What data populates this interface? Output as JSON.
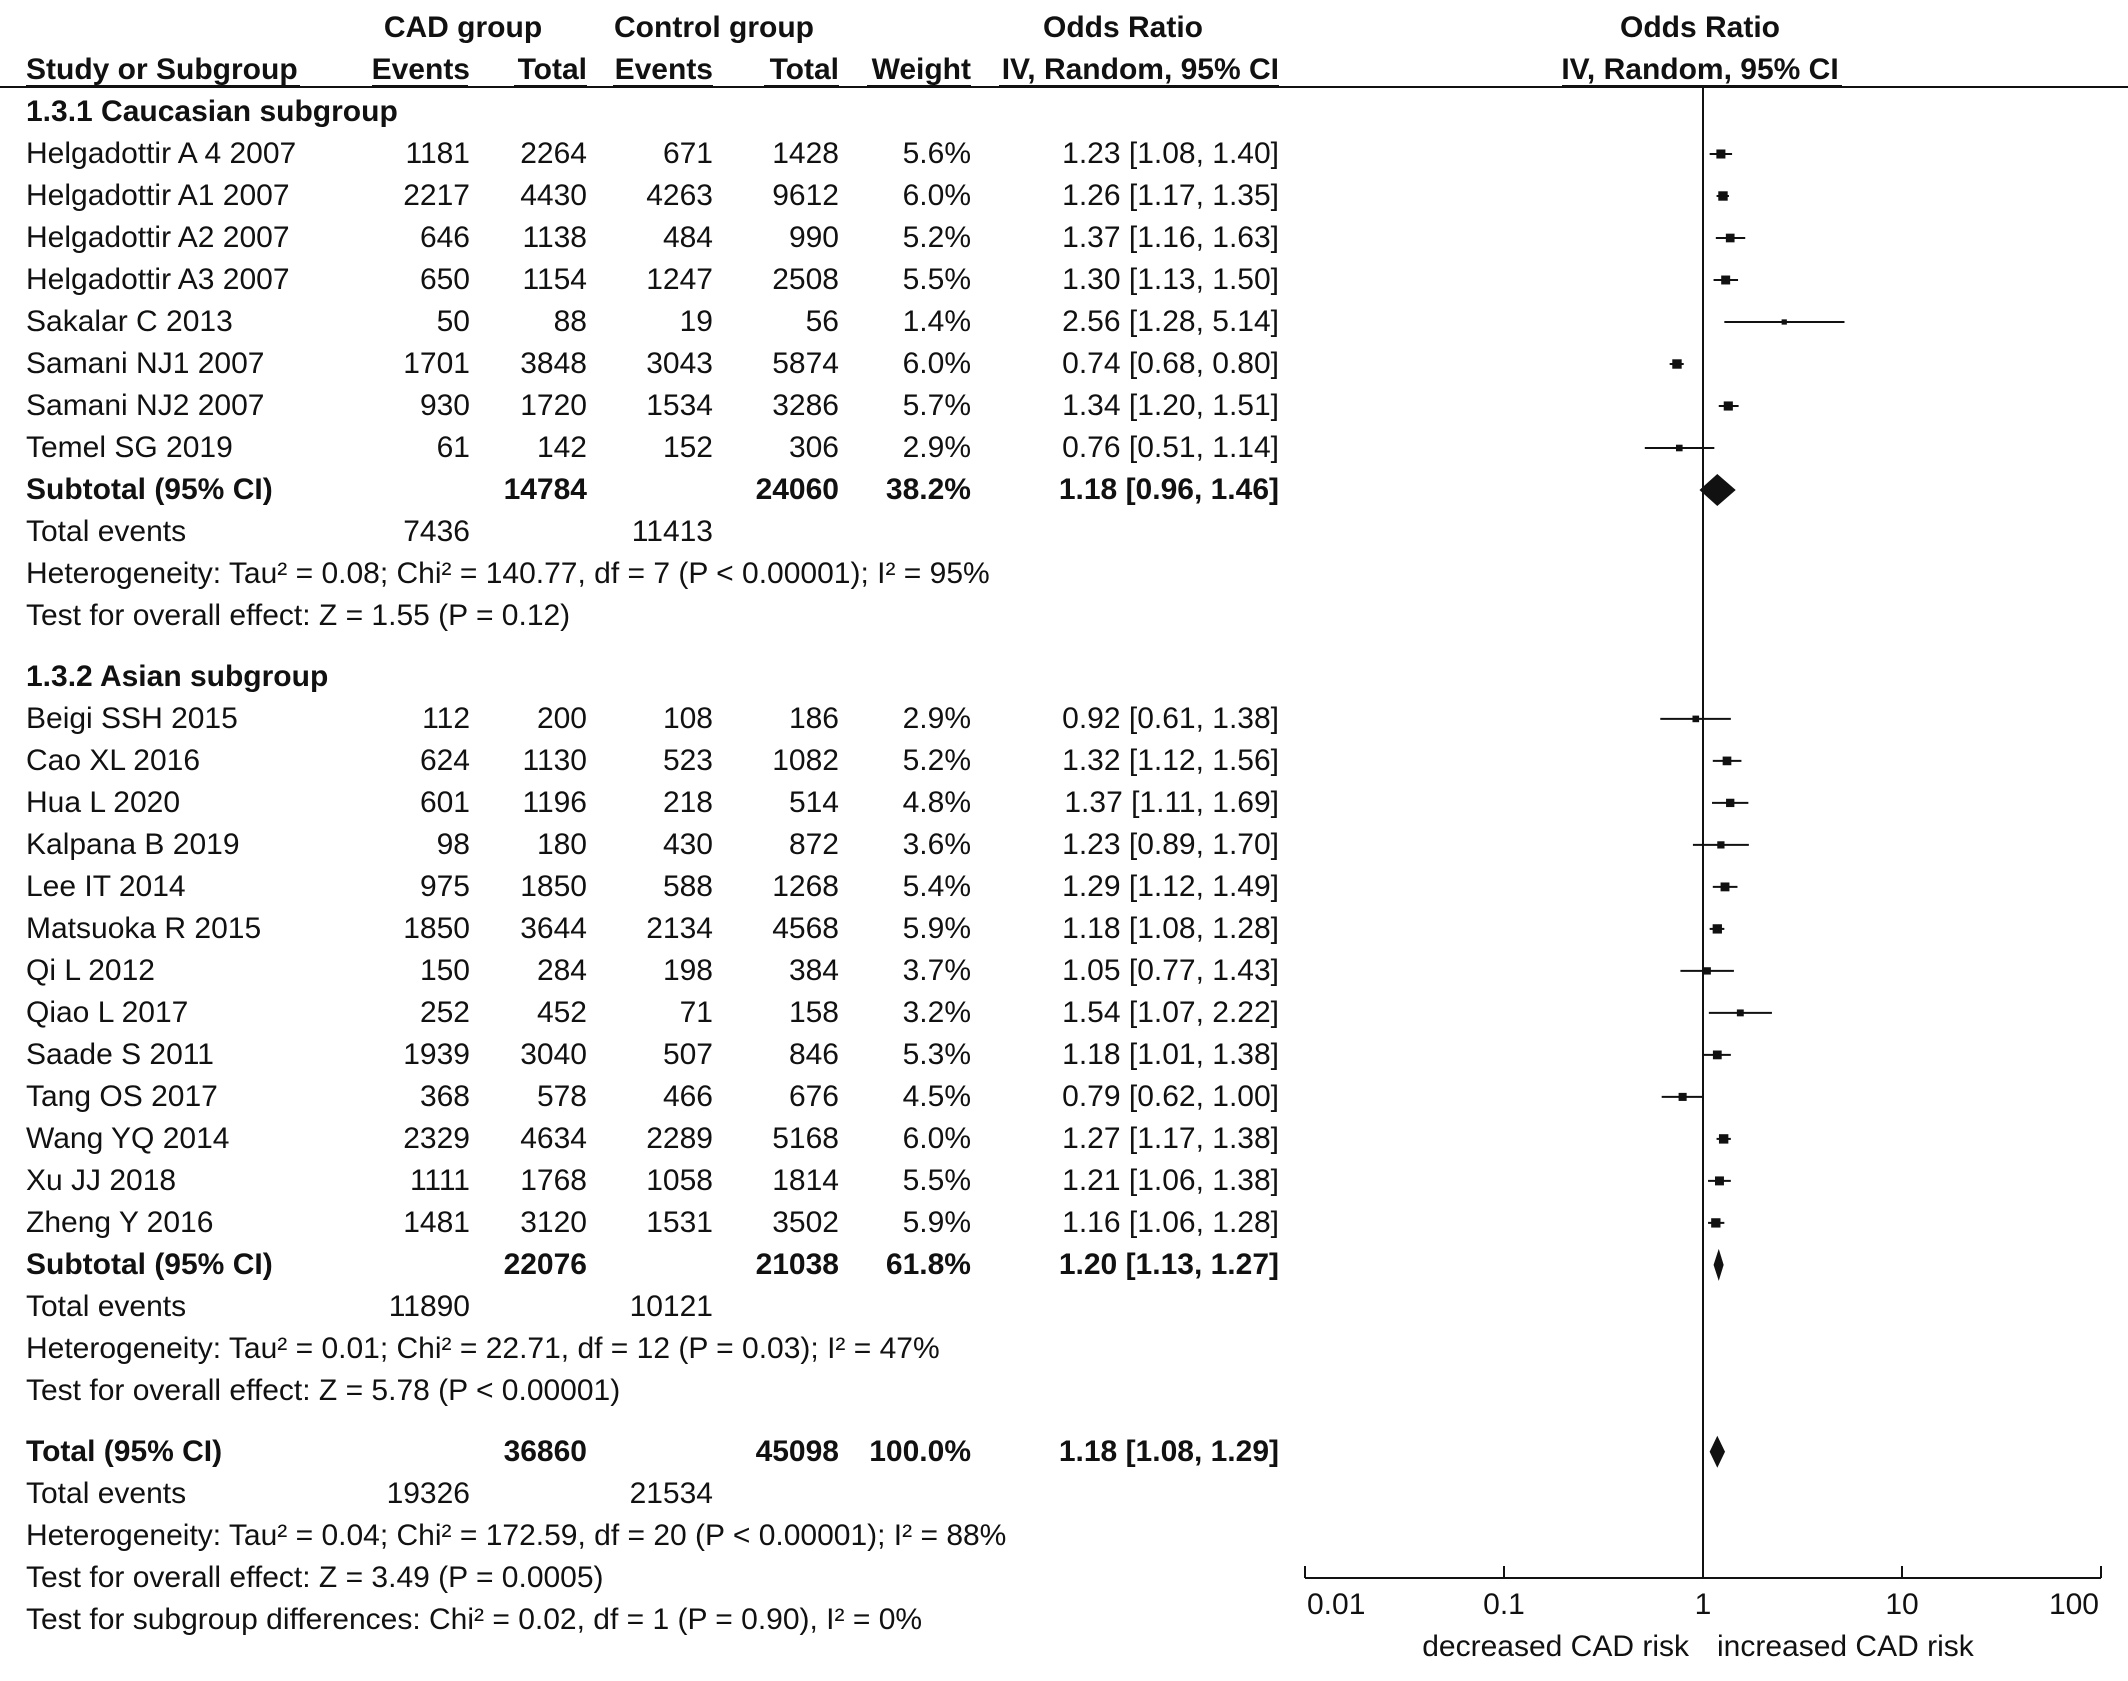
{
  "header": {
    "group1": "CAD group",
    "group2": "Control group",
    "or_title_left": "Odds Ratio",
    "or_title_right": "Odds Ratio",
    "col_study": "Study or Subgroup",
    "col_events1": "Events",
    "col_total1": "Total",
    "col_events2": "Events",
    "col_total2": "Total",
    "col_weight": "Weight",
    "col_method_left": "IV, Random, 95% CI",
    "col_method_right": "IV, Random, 95% CI"
  },
  "subgroups": [
    {
      "title": "1.3.1 Caucasian subgroup",
      "studies": [
        {
          "name": "Helgadottir A 4 2007",
          "e1": "1181",
          "t1": "2264",
          "e2": "671",
          "t2": "1428",
          "weight": "5.6%",
          "ci": "1.23 [1.08, 1.40]"
        },
        {
          "name": "Helgadottir A1 2007",
          "e1": "2217",
          "t1": "4430",
          "e2": "4263",
          "t2": "9612",
          "weight": "6.0%",
          "ci": "1.26 [1.17, 1.35]"
        },
        {
          "name": "Helgadottir A2 2007",
          "e1": "646",
          "t1": "1138",
          "e2": "484",
          "t2": "990",
          "weight": "5.2%",
          "ci": "1.37 [1.16, 1.63]"
        },
        {
          "name": "Helgadottir A3 2007",
          "e1": "650",
          "t1": "1154",
          "e2": "1247",
          "t2": "2508",
          "weight": "5.5%",
          "ci": "1.30 [1.13, 1.50]"
        },
        {
          "name": "Sakalar C 2013",
          "e1": "50",
          "t1": "88",
          "e2": "19",
          "t2": "56",
          "weight": "1.4%",
          "ci": "2.56 [1.28, 5.14]"
        },
        {
          "name": "Samani NJ1 2007",
          "e1": "1701",
          "t1": "3848",
          "e2": "3043",
          "t2": "5874",
          "weight": "6.0%",
          "ci": "0.74 [0.68, 0.80]"
        },
        {
          "name": "Samani NJ2 2007",
          "e1": "930",
          "t1": "1720",
          "e2": "1534",
          "t2": "3286",
          "weight": "5.7%",
          "ci": "1.34 [1.20, 1.51]"
        },
        {
          "name": "Temel SG 2019",
          "e1": "61",
          "t1": "142",
          "e2": "152",
          "t2": "306",
          "weight": "2.9%",
          "ci": "0.76 [0.51, 1.14]"
        }
      ],
      "subtotal": {
        "label": "Subtotal (95% CI)",
        "t1": "14784",
        "t2": "24060",
        "weight": "38.2%",
        "ci": "1.18 [0.96, 1.46]"
      },
      "total_events": {
        "label": "Total events",
        "e1": "7436",
        "e2": "11413"
      },
      "heterogeneity": "Heterogeneity: Tau² = 0.08; Chi² = 140.77, df = 7 (P < 0.00001); I² = 95%",
      "overall": "Test for overall effect: Z = 1.55 (P = 0.12)"
    },
    {
      "title": "1.3.2 Asian subgroup",
      "studies": [
        {
          "name": "Beigi SSH 2015",
          "e1": "112",
          "t1": "200",
          "e2": "108",
          "t2": "186",
          "weight": "2.9%",
          "ci": "0.92 [0.61, 1.38]"
        },
        {
          "name": "Cao XL 2016",
          "e1": "624",
          "t1": "1130",
          "e2": "523",
          "t2": "1082",
          "weight": "5.2%",
          "ci": "1.32 [1.12, 1.56]"
        },
        {
          "name": "Hua L 2020",
          "e1": "601",
          "t1": "1196",
          "e2": "218",
          "t2": "514",
          "weight": "4.8%",
          "ci": "1.37 [1.11, 1.69]"
        },
        {
          "name": "Kalpana B 2019",
          "e1": "98",
          "t1": "180",
          "e2": "430",
          "t2": "872",
          "weight": "3.6%",
          "ci": "1.23 [0.89, 1.70]"
        },
        {
          "name": "Lee IT 2014",
          "e1": "975",
          "t1": "1850",
          "e2": "588",
          "t2": "1268",
          "weight": "5.4%",
          "ci": "1.29 [1.12, 1.49]"
        },
        {
          "name": "Matsuoka R 2015",
          "e1": "1850",
          "t1": "3644",
          "e2": "2134",
          "t2": "4568",
          "weight": "5.9%",
          "ci": "1.18 [1.08, 1.28]"
        },
        {
          "name": "Qi L 2012",
          "e1": "150",
          "t1": "284",
          "e2": "198",
          "t2": "384",
          "weight": "3.7%",
          "ci": "1.05 [0.77, 1.43]"
        },
        {
          "name": "Qiao L 2017",
          "e1": "252",
          "t1": "452",
          "e2": "71",
          "t2": "158",
          "weight": "3.2%",
          "ci": "1.54 [1.07, 2.22]"
        },
        {
          "name": "Saade S 2011",
          "e1": "1939",
          "t1": "3040",
          "e2": "507",
          "t2": "846",
          "weight": "5.3%",
          "ci": "1.18 [1.01, 1.38]"
        },
        {
          "name": "Tang OS 2017",
          "e1": "368",
          "t1": "578",
          "e2": "466",
          "t2": "676",
          "weight": "4.5%",
          "ci": "0.79 [0.62, 1.00]"
        },
        {
          "name": "Wang YQ 2014",
          "e1": "2329",
          "t1": "4634",
          "e2": "2289",
          "t2": "5168",
          "weight": "6.0%",
          "ci": "1.27 [1.17, 1.38]"
        },
        {
          "name": "Xu JJ 2018",
          "e1": "1111",
          "t1": "1768",
          "e2": "1058",
          "t2": "1814",
          "weight": "5.5%",
          "ci": "1.21 [1.06, 1.38]"
        },
        {
          "name": "Zheng Y 2016",
          "e1": "1481",
          "t1": "3120",
          "e2": "1531",
          "t2": "3502",
          "weight": "5.9%",
          "ci": "1.16 [1.06, 1.28]"
        }
      ],
      "subtotal": {
        "label": "Subtotal (95% CI)",
        "t1": "22076",
        "t2": "21038",
        "weight": "61.8%",
        "ci": "1.20 [1.13, 1.27]"
      },
      "total_events": {
        "label": "Total events",
        "e1": "11890",
        "e2": "10121"
      },
      "heterogeneity": "Heterogeneity: Tau² = 0.01; Chi² = 22.71, df = 12 (P = 0.03); I² = 47%",
      "overall": "Test for overall effect: Z = 5.78 (P < 0.00001)"
    }
  ],
  "total": {
    "label": "Total (95% CI)",
    "t1": "36860",
    "t2": "45098",
    "weight": "100.0%",
    "ci": "1.18 [1.08, 1.29]",
    "events_label": "Total events",
    "e1": "19326",
    "e2": "21534",
    "heterogeneity": "Heterogeneity: Tau² = 0.04; Chi² = 172.59, df = 20 (P < 0.00001); I² = 88%",
    "overall": "Test for overall effect: Z = 3.49 (P = 0.0005)",
    "subgroup_diff": "Test for subgroup differences: Chi² = 0.02, df = 1 (P = 0.90), I² = 0%"
  },
  "chart_data": {
    "type": "forest",
    "x_scale": "log",
    "xlim": [
      0.01,
      100
    ],
    "x_ticks": [
      0.01,
      0.1,
      1,
      10,
      100
    ],
    "x_tick_labels": [
      "0.01",
      "0.1",
      "1",
      "10",
      "100"
    ],
    "reference_line": 1,
    "left_label": "decreased CAD risk",
    "right_label": "increased CAD risk",
    "colors": {
      "marks": "#111111",
      "axis": "#111111"
    },
    "studies": [
      {
        "name": "Helgadottir A 4 2007",
        "or": 1.23,
        "lo": 1.08,
        "hi": 1.4,
        "weight": 5.6
      },
      {
        "name": "Helgadottir A1 2007",
        "or": 1.26,
        "lo": 1.17,
        "hi": 1.35,
        "weight": 6.0
      },
      {
        "name": "Helgadottir A2 2007",
        "or": 1.37,
        "lo": 1.16,
        "hi": 1.63,
        "weight": 5.2
      },
      {
        "name": "Helgadottir A3 2007",
        "or": 1.3,
        "lo": 1.13,
        "hi": 1.5,
        "weight": 5.5
      },
      {
        "name": "Sakalar C 2013",
        "or": 2.56,
        "lo": 1.28,
        "hi": 5.14,
        "weight": 1.4
      },
      {
        "name": "Samani NJ1 2007",
        "or": 0.74,
        "lo": 0.68,
        "hi": 0.8,
        "weight": 6.0
      },
      {
        "name": "Samani NJ2 2007",
        "or": 1.34,
        "lo": 1.2,
        "hi": 1.51,
        "weight": 5.7
      },
      {
        "name": "Temel SG 2019",
        "or": 0.76,
        "lo": 0.51,
        "hi": 1.14,
        "weight": 2.9
      },
      {
        "name": "Beigi SSH 2015",
        "or": 0.92,
        "lo": 0.61,
        "hi": 1.38,
        "weight": 2.9
      },
      {
        "name": "Cao XL 2016",
        "or": 1.32,
        "lo": 1.12,
        "hi": 1.56,
        "weight": 5.2
      },
      {
        "name": "Hua L 2020",
        "or": 1.37,
        "lo": 1.11,
        "hi": 1.69,
        "weight": 4.8
      },
      {
        "name": "Kalpana B 2019",
        "or": 1.23,
        "lo": 0.89,
        "hi": 1.7,
        "weight": 3.6
      },
      {
        "name": "Lee IT 2014",
        "or": 1.29,
        "lo": 1.12,
        "hi": 1.49,
        "weight": 5.4
      },
      {
        "name": "Matsuoka R 2015",
        "or": 1.18,
        "lo": 1.08,
        "hi": 1.28,
        "weight": 5.9
      },
      {
        "name": "Qi L 2012",
        "or": 1.05,
        "lo": 0.77,
        "hi": 1.43,
        "weight": 3.7
      },
      {
        "name": "Qiao L 2017",
        "or": 1.54,
        "lo": 1.07,
        "hi": 2.22,
        "weight": 3.2
      },
      {
        "name": "Saade S 2011",
        "or": 1.18,
        "lo": 1.01,
        "hi": 1.38,
        "weight": 5.3
      },
      {
        "name": "Tang OS 2017",
        "or": 0.79,
        "lo": 0.62,
        "hi": 1.0,
        "weight": 4.5
      },
      {
        "name": "Wang YQ 2014",
        "or": 1.27,
        "lo": 1.17,
        "hi": 1.38,
        "weight": 6.0
      },
      {
        "name": "Xu JJ 2018",
        "or": 1.21,
        "lo": 1.06,
        "hi": 1.38,
        "weight": 5.5
      },
      {
        "name": "Zheng Y 2016",
        "or": 1.16,
        "lo": 1.06,
        "hi": 1.28,
        "weight": 5.9
      }
    ],
    "pooled": [
      {
        "name": "Subtotal (95% CI) 1.3.1 Caucasian subgroup",
        "or": 1.18,
        "lo": 0.96,
        "hi": 1.46
      },
      {
        "name": "Subtotal (95% CI) 1.3.2 Asian subgroup",
        "or": 1.2,
        "lo": 1.13,
        "hi": 1.27
      },
      {
        "name": "Total (95% CI)",
        "or": 1.18,
        "lo": 1.08,
        "hi": 1.29
      }
    ]
  }
}
